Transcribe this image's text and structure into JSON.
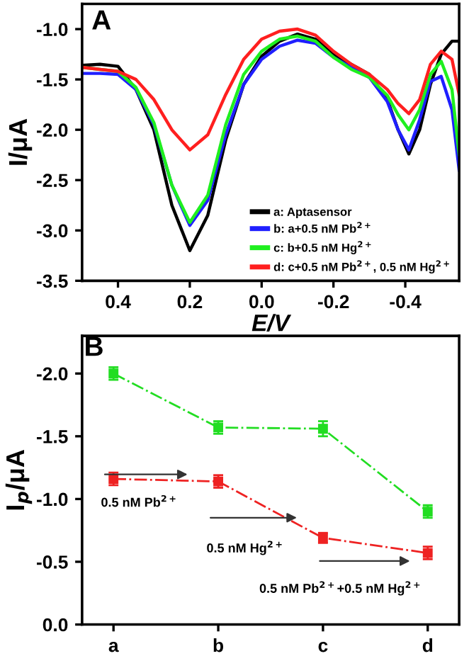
{
  "chart_data": [
    {
      "type": "line",
      "xlabel": "E/V",
      "ylabel": "I/μA",
      "annotations": [
        "A"
      ],
      "x": [
        0.5,
        0.45,
        0.4,
        0.35,
        0.3,
        0.25,
        0.2,
        0.15,
        0.1,
        0.05,
        0.0,
        -0.05,
        -0.1,
        -0.15,
        -0.2,
        -0.25,
        -0.3,
        -0.35,
        -0.38,
        -0.41,
        -0.44,
        -0.47,
        -0.5,
        -0.53,
        -0.55
      ],
      "series": [
        {
          "name": "a: Aptasensor",
          "color": "#000000",
          "values": [
            -1.36,
            -1.35,
            -1.37,
            -1.6,
            -2.0,
            -2.75,
            -3.2,
            -2.85,
            -2.1,
            -1.55,
            -1.27,
            -1.12,
            -1.05,
            -1.1,
            -1.25,
            -1.35,
            -1.45,
            -1.7,
            -2.0,
            -2.24,
            -2.0,
            -1.55,
            -1.25,
            -1.12,
            -1.12
          ]
        },
        {
          "name": "b: a+0.5 nM Pb$^{2+}$",
          "color": "#1f1fff",
          "values": [
            -1.44,
            -1.44,
            -1.45,
            -1.6,
            -1.95,
            -2.55,
            -2.95,
            -2.7,
            -2.05,
            -1.55,
            -1.3,
            -1.17,
            -1.11,
            -1.14,
            -1.28,
            -1.38,
            -1.48,
            -1.72,
            -2.0,
            -2.2,
            -1.9,
            -1.52,
            -1.47,
            -1.8,
            -2.4
          ]
        },
        {
          "name": "c: b+0.5 nM Hg$^{2+}$",
          "color": "#1fef1f",
          "values": [
            -1.38,
            -1.4,
            -1.42,
            -1.58,
            -1.93,
            -2.55,
            -2.92,
            -2.65,
            -1.95,
            -1.45,
            -1.22,
            -1.1,
            -1.07,
            -1.12,
            -1.28,
            -1.4,
            -1.48,
            -1.66,
            -1.85,
            -2.0,
            -1.8,
            -1.45,
            -1.32,
            -1.6,
            -2.25
          ]
        },
        {
          "name": "d: c+0.5 nM Pb$^{2+}$, 0.5 nM Hg$^{2+}$",
          "color": "#ff1f1f",
          "values": [
            -1.38,
            -1.4,
            -1.42,
            -1.5,
            -1.7,
            -2.0,
            -2.2,
            -2.05,
            -1.65,
            -1.3,
            -1.1,
            -1.02,
            -1.0,
            -1.06,
            -1.22,
            -1.35,
            -1.45,
            -1.6,
            -1.74,
            -1.84,
            -1.7,
            -1.35,
            -1.22,
            -1.3,
            -1.65
          ]
        }
      ],
      "xlim": [
        0.5,
        -0.55
      ],
      "xticks": [
        {
          "value": 0.4,
          "label": "0.4"
        },
        {
          "value": 0.2,
          "label": "0.2"
        },
        {
          "value": 0.0,
          "label": "0.0"
        },
        {
          "value": -0.2,
          "label": "-0.2"
        },
        {
          "value": -0.4,
          "label": "-0.4"
        }
      ],
      "ylim": [
        -3.5,
        -0.75
      ],
      "yticks": [
        {
          "value": -3.5,
          "label": "-3.5"
        },
        {
          "value": -3.0,
          "label": "-3.0"
        },
        {
          "value": -2.5,
          "label": "-2.5"
        },
        {
          "value": -2.0,
          "label": "-2.0"
        },
        {
          "value": -1.5,
          "label": "-1.5"
        },
        {
          "value": -1.0,
          "label": "-1.0"
        }
      ],
      "legend": "bottom right",
      "grid": false,
      "marker": "none",
      "line_style": "solid"
    },
    {
      "type": "line",
      "ylabel": "I$_{p}$/μA",
      "categories": [
        "a",
        "b",
        "c",
        "d"
      ],
      "annotations": [
        "B",
        "0.5 nM Pb$^{2+}$",
        "0.5 nM Hg$^{2+}$",
        "0.5 nM Pb$^{2+}$+0.5 nM Hg$^{2+}$"
      ],
      "series": [
        {
          "color": "#22dd22",
          "values": [
            -2.0,
            -1.57,
            -1.56,
            -0.9
          ],
          "errors": [
            0.05,
            0.05,
            0.06,
            0.05
          ]
        },
        {
          "color": "#ee2222",
          "values": [
            -1.16,
            -1.14,
            -0.69,
            -0.57
          ],
          "errors": [
            0.05,
            0.05,
            0.04,
            0.05
          ]
        }
      ],
      "ylim": [
        0,
        -2.3
      ],
      "yticks": [
        {
          "value": 0,
          "label": "0.0"
        },
        {
          "value": -0.5,
          "label": "-0.5"
        },
        {
          "value": -1.0,
          "label": "-1.0"
        },
        {
          "value": -1.5,
          "label": "-1.5"
        },
        {
          "value": -2.0,
          "label": "-2.0"
        }
      ],
      "legend": false,
      "grid": false,
      "marker": "square",
      "line_style": "dashdot"
    }
  ]
}
